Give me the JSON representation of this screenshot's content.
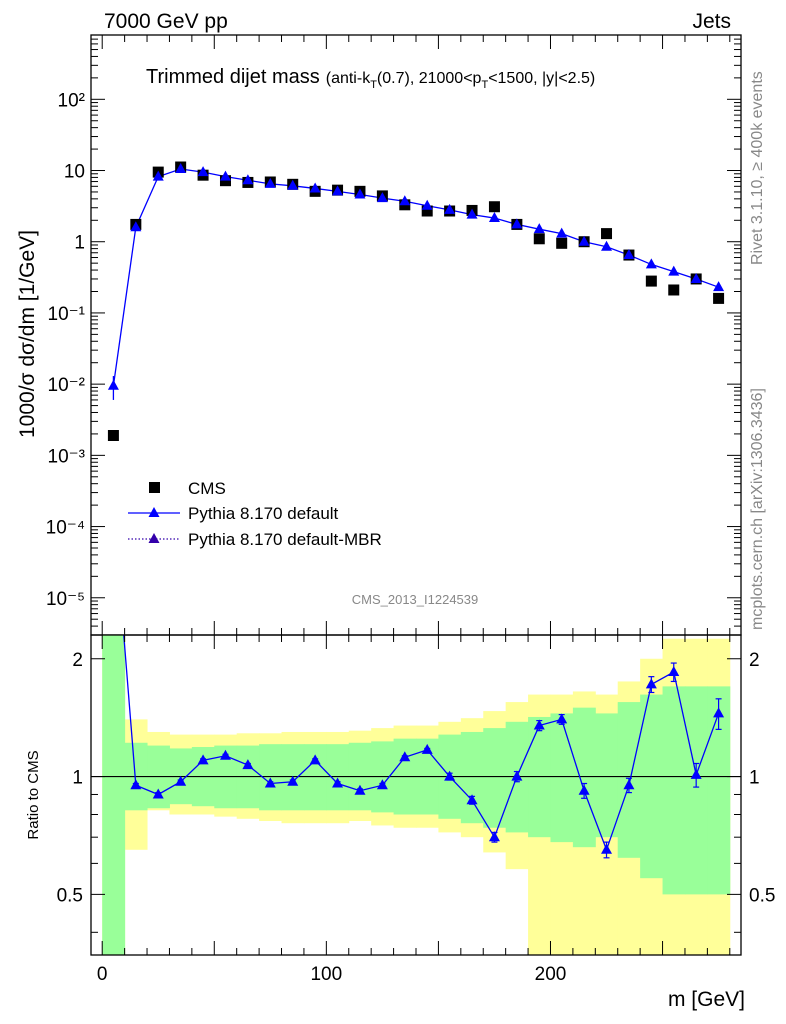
{
  "header": {
    "left": "7000 GeV pp",
    "right": "Jets"
  },
  "side_text": {
    "rivet": "Rivet 3.1.10, ≥ 400k events",
    "mcplots": "mcplots.cern.ch [arXiv:1306.3436]"
  },
  "watermark": "CMS_2013_I1224539",
  "colors": {
    "data": "#000000",
    "mc": "#0000ff",
    "mc_mbr": "#3300aa",
    "band_inner": "#99ff99",
    "band_outer": "#ffff99"
  },
  "chart_data": [
    {
      "type": "scatter",
      "title": "Trimmed dijet mass",
      "title_sub": "(anti-k_T(0.7), 21000<p_T<1500, |y|<2.5)",
      "ylabel": "1000/σ dσ/dm [1/GeV]",
      "yscale": "log",
      "ylim": [
        3e-06,
        800
      ],
      "xlim": [
        -5,
        285
      ],
      "y_tick_labels": [
        "10⁻⁵",
        "10⁻⁴",
        "10⁻³",
        "10⁻²",
        "10⁻¹",
        "1",
        "10",
        "10²"
      ],
      "legend_position": "lower-left",
      "series": [
        {
          "name": "CMS",
          "marker": "square",
          "x": [
            5,
            15,
            25,
            35,
            45,
            55,
            65,
            75,
            85,
            95,
            105,
            115,
            125,
            135,
            145,
            155,
            165,
            175,
            185,
            195,
            205,
            215,
            225,
            235,
            245,
            255,
            265,
            275
          ],
          "y": [
            0.0019,
            1.75,
            9.5,
            11.2,
            8.6,
            7.2,
            6.8,
            6.9,
            6.4,
            5.1,
            5.3,
            5.1,
            4.4,
            3.3,
            2.7,
            2.7,
            2.75,
            3.1,
            1.75,
            1.1,
            0.95,
            1.0,
            1.3,
            0.65,
            0.28,
            0.21,
            0.3,
            0.16
          ]
        },
        {
          "name": "Pythia 8.170 default",
          "marker": "triangle",
          "line": "solid",
          "x": [
            5,
            15,
            25,
            35,
            45,
            55,
            65,
            75,
            85,
            95,
            105,
            115,
            125,
            135,
            145,
            155,
            165,
            175,
            185,
            195,
            205,
            215,
            225,
            235,
            245,
            255,
            265,
            275
          ],
          "y": [
            0.0095,
            1.6,
            8.2,
            10.5,
            9.5,
            8.2,
            7.3,
            6.5,
            6.1,
            5.6,
            5.1,
            4.6,
            4.1,
            3.7,
            3.2,
            2.8,
            2.4,
            2.15,
            1.75,
            1.5,
            1.3,
            1.0,
            0.85,
            0.65,
            0.48,
            0.38,
            0.3,
            0.23
          ],
          "yerr": [
            0.0035,
            0.05,
            0.1,
            0.1,
            0.1,
            0.1,
            0.1,
            0.08,
            0.08,
            0.07,
            0.07,
            0.06,
            0.05,
            0.05,
            0.04,
            0.04,
            0.04,
            0.03,
            0.03,
            0.03,
            0.03,
            0.02,
            0.02,
            0.02,
            0.02,
            0.02,
            0.02,
            0.02
          ]
        },
        {
          "name": "Pythia 8.170 default-MBR",
          "marker": "triangle",
          "line": "dotted",
          "x": [],
          "y": []
        }
      ]
    },
    {
      "type": "line",
      "ylabel": "Ratio to CMS",
      "xlabel": "m [GeV]",
      "xlim": [
        -5,
        285
      ],
      "ylim": [
        0.35,
        2.3
      ],
      "yscale": "log",
      "x_ticks": [
        0,
        100,
        200
      ],
      "y_tick_labels": [
        "0.5",
        "1",
        "2"
      ],
      "reference_line": 1,
      "bands": {
        "edges": [
          0,
          10,
          20,
          30,
          40,
          50,
          60,
          70,
          80,
          90,
          100,
          110,
          120,
          130,
          140,
          150,
          160,
          170,
          180,
          190,
          200,
          210,
          220,
          230,
          240,
          250,
          260,
          270,
          280
        ],
        "inner_lo": [
          0.2,
          0.82,
          0.83,
          0.85,
          0.84,
          0.83,
          0.83,
          0.82,
          0.82,
          0.82,
          0.82,
          0.82,
          0.81,
          0.8,
          0.8,
          0.78,
          0.76,
          0.74,
          0.72,
          0.7,
          0.68,
          0.66,
          0.7,
          0.62,
          0.55,
          0.5,
          0.5,
          0.5
        ],
        "inner_hi": [
          2.5,
          1.22,
          1.2,
          1.18,
          1.19,
          1.2,
          1.2,
          1.21,
          1.21,
          1.21,
          1.21,
          1.22,
          1.23,
          1.25,
          1.25,
          1.28,
          1.3,
          1.33,
          1.38,
          1.42,
          1.45,
          1.5,
          1.45,
          1.55,
          1.62,
          1.7,
          1.7,
          1.7
        ],
        "outer_lo": [
          0.2,
          0.65,
          0.82,
          0.8,
          0.8,
          0.79,
          0.78,
          0.77,
          0.76,
          0.76,
          0.76,
          0.77,
          0.75,
          0.74,
          0.74,
          0.72,
          0.7,
          0.64,
          0.58,
          0.3,
          0.3,
          0.3,
          0.3,
          0.2,
          0.2,
          0.2,
          0.2,
          0.2
        ],
        "outer_hi": [
          2.5,
          1.4,
          1.3,
          1.28,
          1.28,
          1.28,
          1.29,
          1.29,
          1.3,
          1.3,
          1.3,
          1.31,
          1.33,
          1.35,
          1.35,
          1.38,
          1.41,
          1.47,
          1.55,
          1.62,
          1.62,
          1.65,
          1.62,
          1.75,
          2.0,
          2.25,
          2.25,
          2.25
        ]
      },
      "series": [
        {
          "name": "Pythia 8.170 default",
          "x": [
            5,
            15,
            25,
            35,
            45,
            55,
            65,
            75,
            85,
            95,
            105,
            115,
            125,
            135,
            145,
            155,
            165,
            175,
            185,
            195,
            205,
            215,
            225,
            235,
            245,
            255,
            265,
            275
          ],
          "y": [
            4.9,
            0.95,
            0.9,
            0.97,
            1.1,
            1.13,
            1.07,
            0.96,
            0.97,
            1.1,
            0.96,
            0.92,
            0.95,
            1.12,
            1.17,
            1.0,
            0.87,
            0.7,
            1.0,
            1.35,
            1.4,
            0.92,
            0.65,
            0.95,
            1.72,
            1.85,
            1.01,
            1.45
          ],
          "yerr": [
            0,
            0.01,
            0.01,
            0.01,
            0.01,
            0.01,
            0.01,
            0.01,
            0.01,
            0.01,
            0.01,
            0.01,
            0.01,
            0.01,
            0.01,
            0.02,
            0.02,
            0.02,
            0.03,
            0.04,
            0.04,
            0.04,
            0.03,
            0.04,
            0.08,
            0.1,
            0.07,
            0.13
          ]
        }
      ]
    }
  ]
}
